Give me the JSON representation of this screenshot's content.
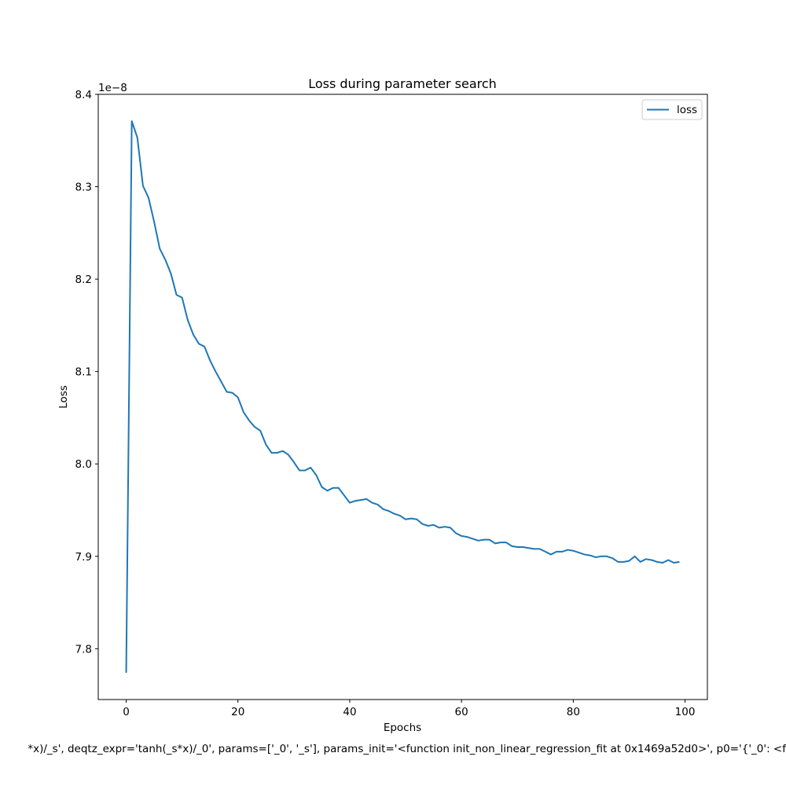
{
  "chart_data": {
    "type": "line",
    "title": "Loss during parameter search",
    "xlabel": "Epochs",
    "ylabel": "Loss",
    "y_offset_label": "1e−8",
    "xlim": [
      -5,
      104
    ],
    "ylim": [
      7.745,
      8.4
    ],
    "xticks": [
      0,
      20,
      40,
      60,
      80,
      100
    ],
    "xtick_labels": [
      "0",
      "20",
      "40",
      "60",
      "80",
      "100"
    ],
    "yticks": [
      7.8,
      7.9,
      8.0,
      8.1,
      8.2,
      8.3,
      8.4
    ],
    "ytick_labels": [
      "7.8",
      "7.9",
      "8.0",
      "8.1",
      "8.2",
      "8.3",
      "8.4"
    ],
    "grid": false,
    "legend_position": "top-right",
    "series": [
      {
        "name": "loss",
        "color": "#1f77b4",
        "x": [
          0,
          1,
          2,
          3,
          4,
          5,
          6,
          7,
          8,
          9,
          10,
          11,
          12,
          13,
          14,
          15,
          16,
          17,
          18,
          19,
          20,
          21,
          22,
          23,
          24,
          25,
          26,
          27,
          28,
          29,
          30,
          31,
          32,
          33,
          34,
          35,
          36,
          37,
          38,
          39,
          40,
          41,
          42,
          43,
          44,
          45,
          46,
          47,
          48,
          49,
          50,
          51,
          52,
          53,
          54,
          55,
          56,
          57,
          58,
          59,
          60,
          61,
          62,
          63,
          64,
          65,
          66,
          67,
          68,
          69,
          70,
          71,
          72,
          73,
          74,
          75,
          76,
          77,
          78,
          79,
          80,
          81,
          82,
          83,
          84,
          85,
          86,
          87,
          88,
          89,
          90,
          91,
          92,
          93,
          94,
          95,
          96,
          97,
          98,
          99
        ],
        "values": [
          7.774,
          8.371,
          8.353,
          8.301,
          8.288,
          8.262,
          8.233,
          8.221,
          8.206,
          8.183,
          8.18,
          8.156,
          8.14,
          8.13,
          8.127,
          8.112,
          8.1,
          8.089,
          8.078,
          8.077,
          8.072,
          8.056,
          8.047,
          8.04,
          8.036,
          8.021,
          8.012,
          8.012,
          8.014,
          8.01,
          8.002,
          7.993,
          7.993,
          7.996,
          7.988,
          7.975,
          7.971,
          7.974,
          7.974,
          7.966,
          7.958,
          7.96,
          7.961,
          7.962,
          7.958,
          7.956,
          7.951,
          7.949,
          7.946,
          7.944,
          7.94,
          7.941,
          7.94,
          7.935,
          7.933,
          7.934,
          7.931,
          7.932,
          7.931,
          7.925,
          7.922,
          7.921,
          7.919,
          7.917,
          7.918,
          7.918,
          7.914,
          7.915,
          7.915,
          7.911,
          7.91,
          7.91,
          7.909,
          7.908,
          7.908,
          7.905,
          7.902,
          7.905,
          7.905,
          7.907,
          7.906,
          7.904,
          7.902,
          7.901,
          7.899,
          7.9,
          7.9,
          7.898,
          7.894,
          7.894,
          7.895,
          7.9,
          7.894,
          7.897,
          7.896,
          7.894,
          7.893,
          7.896,
          7.893,
          7.894
        ]
      }
    ]
  },
  "footer_text": "*x)/_s', deqtz_expr='tanh(_s*x)/_0', params=['_0', '_s'], params_init='<function init_non_linear_regression_fit at 0x1469a52d0>', p0='{'_0': <f"
}
